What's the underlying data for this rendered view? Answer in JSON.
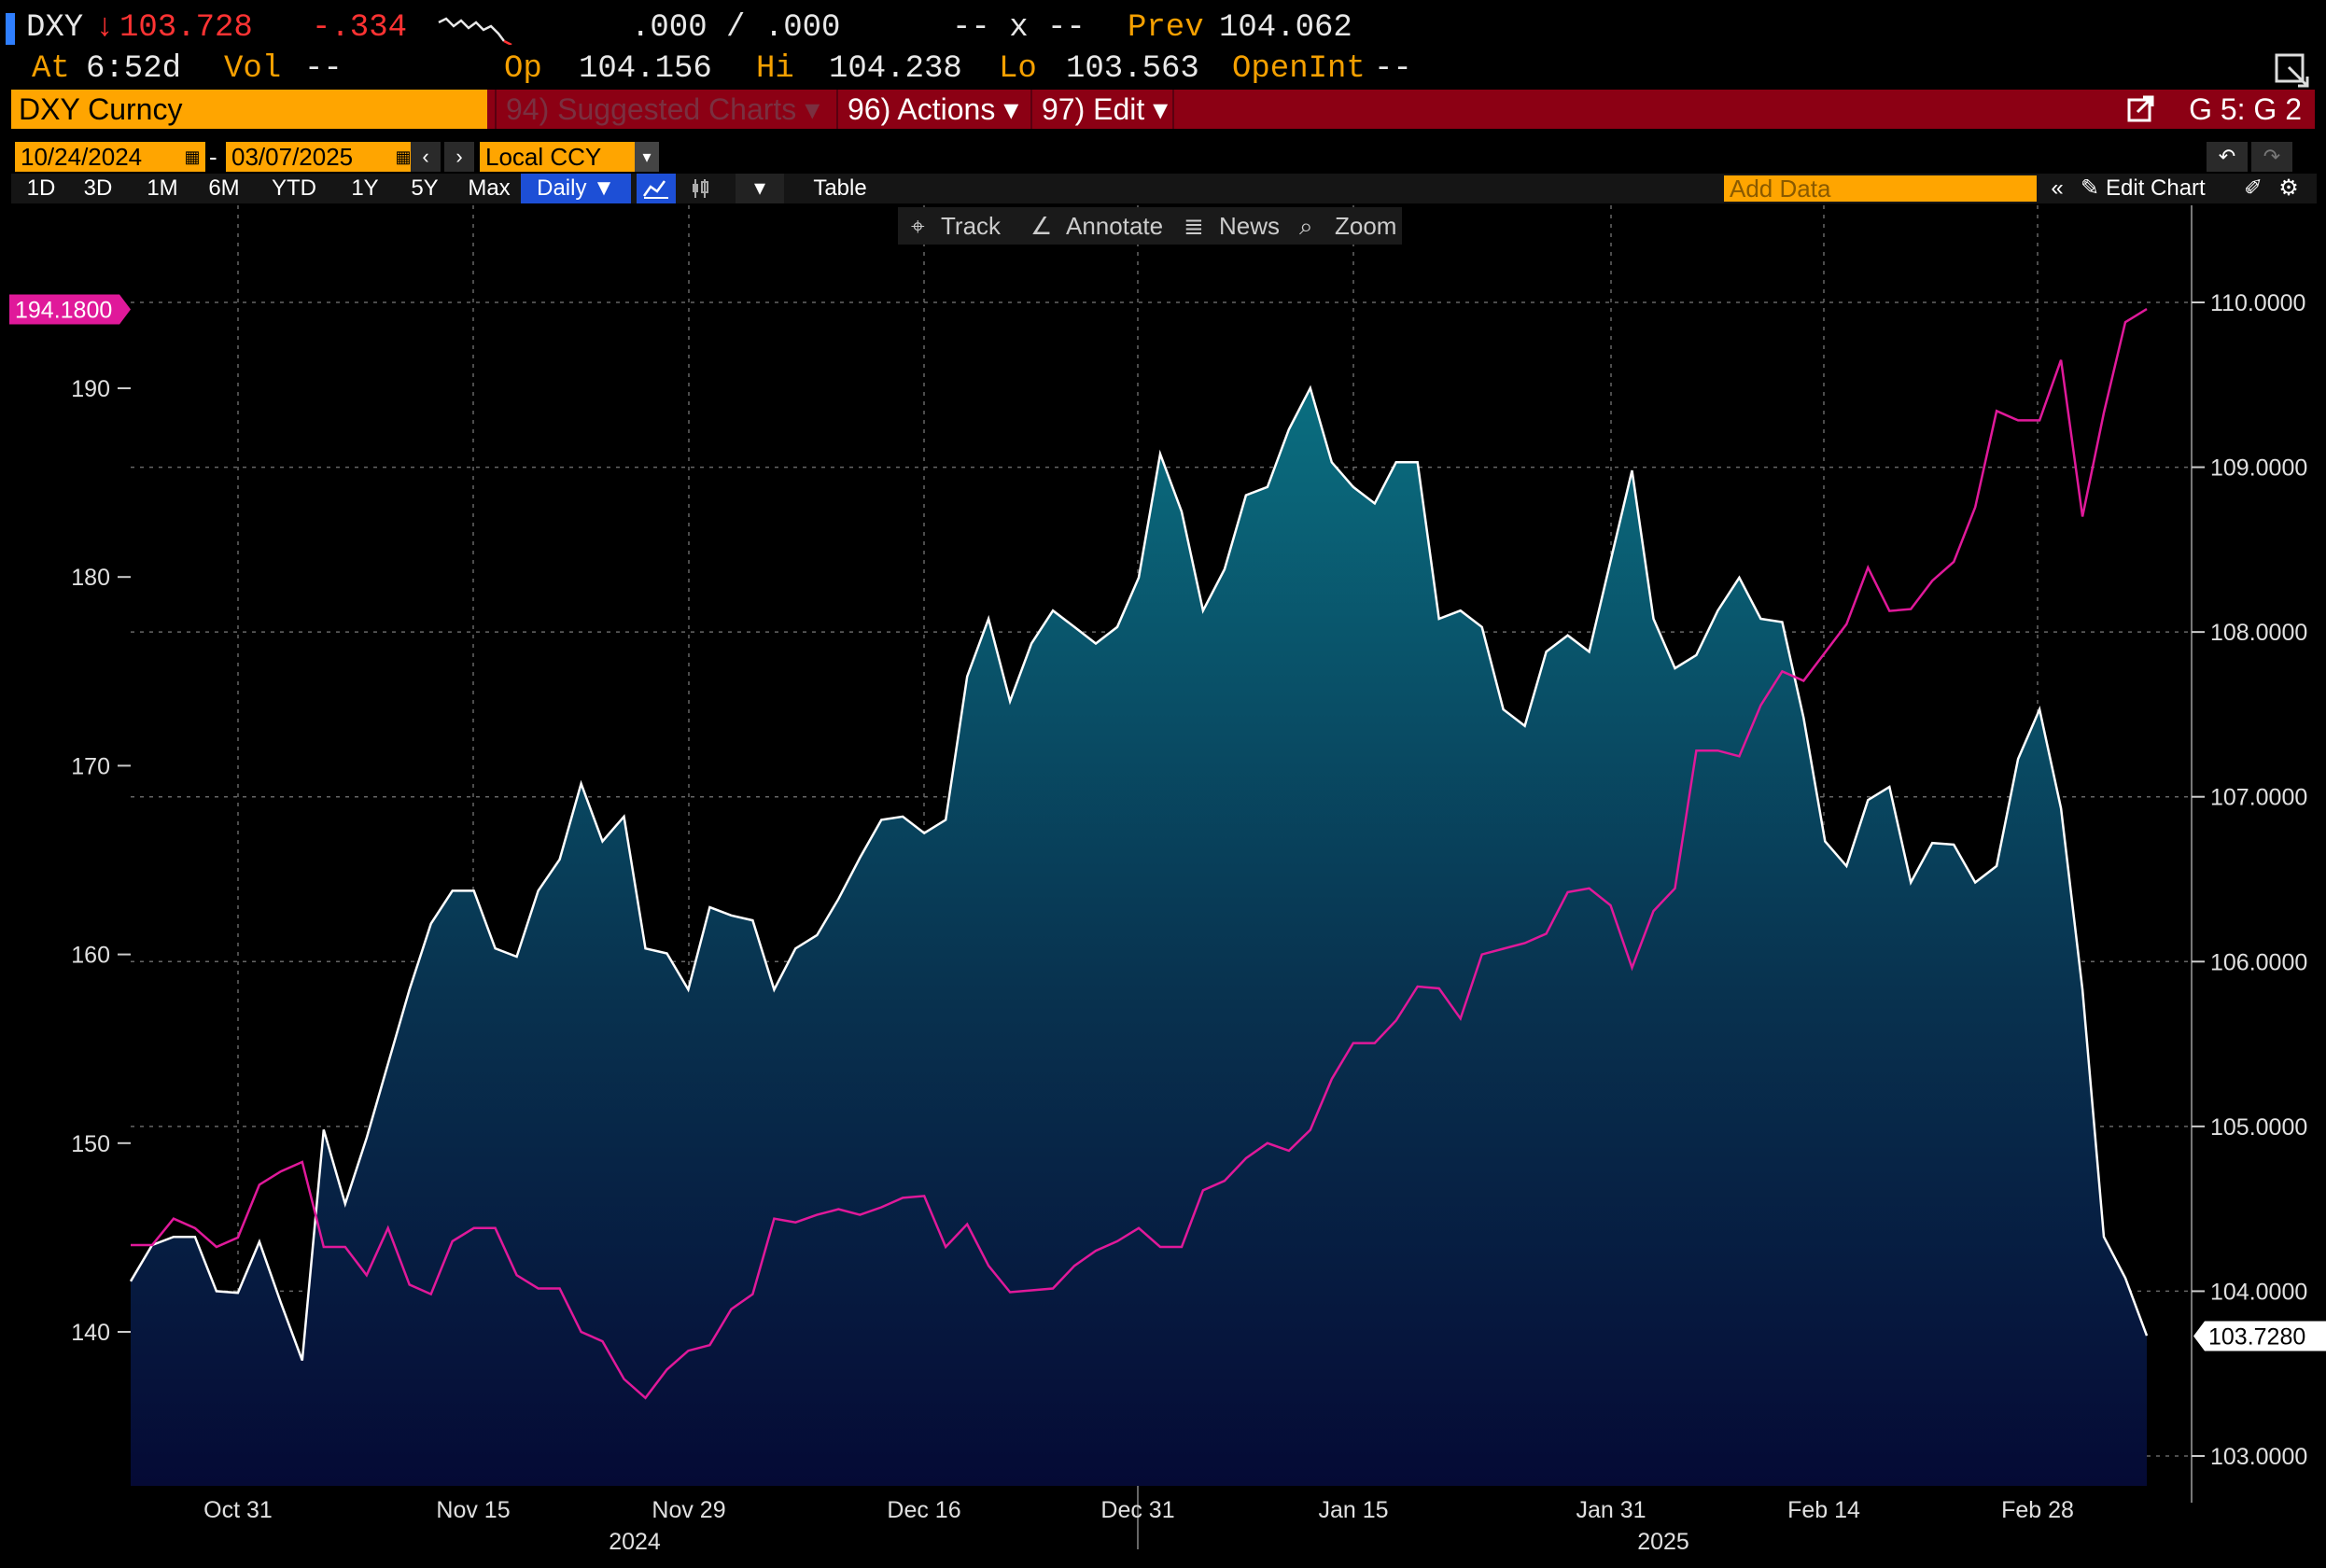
{
  "header": {
    "ticker": "DXY",
    "last_price": "103.728",
    "change": "-.334",
    "bid_ask": ".000 / .000",
    "size": "-- x --",
    "prev_label": "Prev",
    "prev_value": "104.062",
    "at_label": "At",
    "at_value": "6:52d",
    "vol_label": "Vol",
    "vol_value": "--",
    "op_label": "Op",
    "op_value": "104.156",
    "hi_label": "Hi",
    "hi_value": "104.238",
    "lo_label": "Lo",
    "lo_value": "103.563",
    "openint_label": "OpenInt",
    "openint_value": "--",
    "down_arrow_icon": "down-arrow-icon"
  },
  "menubar": {
    "security": "DXY Curncy",
    "suggested": "94) Suggested Charts",
    "actions": "96) Actions",
    "edit": "97) Edit",
    "grid_id": "G 5: G 2"
  },
  "dates": {
    "start": "10/24/2024",
    "end": "03/07/2025",
    "currency": "Local CCY"
  },
  "periods": [
    "1D",
    "3D",
    "1M",
    "6M",
    "YTD",
    "1Y",
    "5Y",
    "Max"
  ],
  "frequency": "Daily",
  "table_label": "Table",
  "add_data_placeholder": "Add Data",
  "edit_chart_label": "Edit Chart",
  "toolbar": {
    "track": "Track",
    "annotate": "Annotate",
    "news": "News",
    "zoom": "Zoom"
  },
  "colors": {
    "price_line": "#ffffff",
    "area_top": "#0a6e80",
    "area_bottom": "#050a35",
    "magenta_series": "#e0199a",
    "accent_orange": "#ffa500",
    "menu_red": "#8c0014"
  },
  "chart_data": {
    "type": "area",
    "x_tick_labels": [
      "Oct 31",
      "Nov 15",
      "Nov 29",
      "Dec 16",
      "Dec 31",
      "Jan 15",
      "Jan 31",
      "Feb 14",
      "Feb 28"
    ],
    "year_labels": [
      "2024",
      "2025"
    ],
    "right_axis": {
      "ticks": [
        "103.0000",
        "104.0000",
        "105.0000",
        "106.0000",
        "107.0000",
        "108.0000",
        "109.0000",
        "110.0000"
      ],
      "range": [
        102.8,
        110.4
      ],
      "last_value_label": "103.7280",
      "last_value": 103.728
    },
    "left_axis": {
      "ticks": [
        "140",
        "150",
        "160",
        "170",
        "180",
        "190"
      ],
      "range": [
        132.3,
        197.5
      ],
      "last_value_label": "194.1800",
      "last_value": 194.18
    },
    "grid": true,
    "series": [
      {
        "axis": "right",
        "style": "area",
        "values": [
          104.06,
          104.28,
          104.33,
          104.33,
          104.0,
          103.99,
          104.3,
          103.93,
          103.58,
          104.98,
          104.53,
          104.93,
          105.38,
          105.83,
          106.23,
          106.43,
          106.43,
          106.08,
          106.03,
          106.43,
          106.62,
          107.08,
          106.73,
          106.88,
          106.08,
          106.05,
          105.83,
          106.33,
          106.28,
          106.25,
          105.83,
          106.08,
          106.16,
          106.38,
          106.63,
          106.86,
          106.88,
          106.78,
          106.86,
          107.73,
          108.08,
          107.58,
          107.93,
          108.13,
          108.03,
          107.93,
          108.03,
          108.33,
          109.08,
          108.73,
          108.13,
          108.38,
          108.83,
          108.88,
          109.23,
          109.48,
          109.03,
          108.88,
          108.78,
          109.03,
          109.03,
          108.08,
          108.13,
          108.03,
          107.53,
          107.43,
          107.88,
          107.98,
          107.88,
          108.43,
          108.98,
          108.08,
          107.78,
          107.86,
          108.13,
          108.33,
          108.08,
          108.06,
          107.48,
          106.73,
          106.58,
          106.98,
          107.06,
          106.48,
          106.72,
          106.71,
          106.48,
          106.58,
          107.23,
          107.53,
          106.93,
          105.83,
          104.33,
          104.08,
          103.73
        ]
      },
      {
        "axis": "left",
        "style": "line",
        "values": [
          144.6,
          144.6,
          146.0,
          145.5,
          144.5,
          145.0,
          147.8,
          148.5,
          149.0,
          144.5,
          144.5,
          143.0,
          145.5,
          142.5,
          142.0,
          144.8,
          145.5,
          145.5,
          143.0,
          142.3,
          142.3,
          140.0,
          139.5,
          137.5,
          136.5,
          138.0,
          139.0,
          139.3,
          141.2,
          142.0,
          146.0,
          145.8,
          146.2,
          146.5,
          146.2,
          146.6,
          147.1,
          147.2,
          144.5,
          145.7,
          143.5,
          142.1,
          142.2,
          142.3,
          143.5,
          144.3,
          144.8,
          145.5,
          144.5,
          144.5,
          147.5,
          148.0,
          149.2,
          150.0,
          149.6,
          150.7,
          153.4,
          155.3,
          155.3,
          156.5,
          158.3,
          158.2,
          156.6,
          160.0,
          160.3,
          160.6,
          161.1,
          163.3,
          163.5,
          162.6,
          159.3,
          162.3,
          163.5,
          170.8,
          170.8,
          170.5,
          173.2,
          175.0,
          174.5,
          176.0,
          177.5,
          180.5,
          178.2,
          178.3,
          179.8,
          180.8,
          183.7,
          188.8,
          188.3,
          188.3,
          191.5,
          183.2,
          188.7,
          193.5,
          194.2
        ]
      }
    ]
  }
}
